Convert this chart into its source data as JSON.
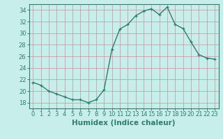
{
  "x": [
    0,
    1,
    2,
    3,
    4,
    5,
    6,
    7,
    8,
    9,
    10,
    11,
    12,
    13,
    14,
    15,
    16,
    17,
    18,
    19,
    20,
    21,
    22,
    23
  ],
  "y": [
    21.5,
    21.0,
    20.0,
    19.5,
    19.0,
    18.5,
    18.5,
    18.0,
    18.5,
    20.2,
    27.2,
    30.7,
    31.5,
    33.0,
    33.8,
    34.2,
    33.2,
    34.5,
    31.5,
    30.8,
    28.5,
    26.3,
    25.7,
    25.5
  ],
  "line_color": "#2E7D6E",
  "marker": "+",
  "background_color": "#C8EEEC",
  "grid_color": "#C8A0A8",
  "xlabel": "Humidex (Indice chaleur)",
  "ylim": [
    17,
    35
  ],
  "xlim": [
    -0.5,
    23.5
  ],
  "yticks": [
    18,
    20,
    22,
    24,
    26,
    28,
    30,
    32,
    34
  ],
  "xticks": [
    0,
    1,
    2,
    3,
    4,
    5,
    6,
    7,
    8,
    9,
    10,
    11,
    12,
    13,
    14,
    15,
    16,
    17,
    18,
    19,
    20,
    21,
    22,
    23
  ],
  "xtick_labels": [
    "0",
    "1",
    "2",
    "3",
    "4",
    "5",
    "6",
    "7",
    "8",
    "9",
    "10",
    "11",
    "12",
    "13",
    "14",
    "15",
    "16",
    "17",
    "18",
    "19",
    "20",
    "21",
    "22",
    "23"
  ],
  "tick_color": "#2E7D6E",
  "axis_color": "#2E7D6E",
  "label_fontsize": 7.5,
  "tick_fontsize": 6.0
}
